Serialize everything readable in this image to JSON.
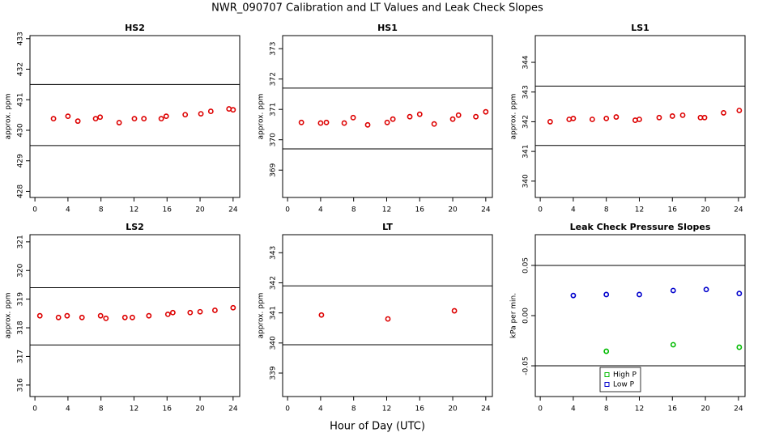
{
  "title": "NWR_090707  Calibration and LT Values and Leak Check Slopes",
  "xlabel": "Hour of Day (UTC)",
  "chart_data": [
    {
      "type": "scatter",
      "title": "HS2",
      "ylabel": "approx. ppm",
      "xlim": [
        -0.6,
        24.8
      ],
      "xticks": [
        0,
        4,
        8,
        12,
        16,
        20,
        24
      ],
      "ylim": [
        427.8,
        433.1
      ],
      "yticks": [
        428,
        429,
        430,
        431,
        432,
        433
      ],
      "hlines": [
        431.5,
        429.5
      ],
      "series": [
        {
          "color": "#dd0000",
          "x": [
            2.25,
            4.0,
            5.2,
            7.35,
            7.9,
            10.2,
            12.05,
            13.2,
            15.3,
            15.9,
            18.2,
            20.1,
            21.3,
            23.5,
            24.0
          ],
          "values": [
            430.38,
            430.46,
            430.3,
            430.38,
            430.43,
            430.25,
            430.38,
            430.38,
            430.38,
            430.46,
            430.51,
            430.54,
            430.62,
            430.7,
            430.67
          ]
        }
      ]
    },
    {
      "type": "scatter",
      "title": "HS1",
      "ylabel": "approx. ppm",
      "xlim": [
        -0.6,
        24.8
      ],
      "xticks": [
        0,
        4,
        8,
        12,
        16,
        20,
        24
      ],
      "ylim": [
        368.1,
        373.43
      ],
      "yticks": [
        369,
        370,
        371,
        372,
        373
      ],
      "hlines": [
        371.7,
        369.7
      ],
      "series": [
        {
          "color": "#dd0000",
          "x": [
            1.67,
            4.0,
            4.7,
            6.86,
            7.94,
            9.7,
            12.06,
            12.75,
            14.8,
            16.0,
            17.75,
            20.0,
            20.7,
            22.8,
            24.0
          ],
          "values": [
            370.57,
            370.55,
            370.57,
            370.55,
            370.73,
            370.49,
            370.57,
            370.68,
            370.76,
            370.84,
            370.52,
            370.68,
            370.81,
            370.76,
            370.92
          ]
        }
      ]
    },
    {
      "type": "scatter",
      "title": "LS1",
      "ylabel": "approx. ppm",
      "xlim": [
        -0.6,
        24.8
      ],
      "xticks": [
        0,
        4,
        8,
        12,
        16,
        20,
        24
      ],
      "ylim": [
        339.45,
        344.9
      ],
      "yticks": [
        340,
        341,
        342,
        343,
        344
      ],
      "hlines": [
        343.2,
        341.2
      ],
      "series": [
        {
          "color": "#dd0000",
          "x": [
            1.2,
            3.5,
            4.0,
            6.3,
            8.0,
            9.2,
            11.5,
            12.0,
            14.4,
            16.0,
            17.25,
            19.4,
            19.9,
            22.2,
            24.1
          ],
          "values": [
            342.0,
            342.08,
            342.11,
            342.08,
            342.11,
            342.16,
            342.05,
            342.08,
            342.14,
            342.19,
            342.22,
            342.14,
            342.14,
            342.3,
            342.38
          ]
        }
      ]
    },
    {
      "type": "scatter",
      "title": "LS2",
      "ylabel": "approx. ppm",
      "xlim": [
        -0.6,
        24.8
      ],
      "xticks": [
        0,
        4,
        8,
        12,
        16,
        20,
        24
      ],
      "ylim": [
        315.6,
        321.25
      ],
      "yticks": [
        316,
        317,
        318,
        319,
        320,
        321
      ],
      "hlines": [
        319.4,
        317.4
      ],
      "series": [
        {
          "color": "#dd0000",
          "x": [
            0.6,
            2.85,
            3.9,
            5.7,
            7.95,
            8.6,
            10.9,
            11.8,
            13.8,
            16.1,
            16.7,
            18.8,
            20.0,
            21.8,
            24.0
          ],
          "values": [
            318.42,
            318.36,
            318.42,
            318.36,
            318.42,
            318.33,
            318.36,
            318.36,
            318.42,
            318.47,
            318.53,
            318.53,
            318.56,
            318.61,
            318.7
          ]
        }
      ]
    },
    {
      "type": "scatter",
      "title": "LT",
      "ylabel": "approx. ppm",
      "xlim": [
        -0.6,
        24.8
      ],
      "xticks": [
        0,
        4,
        8,
        12,
        16,
        20,
        24
      ],
      "ylim": [
        338.22,
        343.6
      ],
      "yticks": [
        339,
        340,
        341,
        342,
        343
      ],
      "hlines": [
        341.9,
        339.94
      ],
      "series": [
        {
          "color": "#dd0000",
          "x": [
            4.1,
            12.15,
            20.2
          ],
          "values": [
            340.93,
            340.8,
            341.07
          ]
        }
      ]
    },
    {
      "type": "scatter",
      "title": "Leak Check Pressure Slopes",
      "ylabel": "kPa per min.",
      "xlim": [
        -0.6,
        24.8
      ],
      "xticks": [
        0,
        4,
        8,
        12,
        16,
        20,
        24
      ],
      "ylim": [
        -0.0806,
        0.0806
      ],
      "yticks": [
        -0.05,
        {
          "value": 0,
          "label": "0.00"
        },
        0.05
      ],
      "hlines": [
        0.05,
        -0.05
      ],
      "legend": "bottom",
      "series": [
        {
          "name": "High P",
          "color": "#00bb00",
          "x": [
            8.0,
            16.1,
            24.1
          ],
          "values": [
            -0.0355,
            -0.029,
            -0.0315
          ]
        },
        {
          "name": "Low P",
          "color": "#0000cc",
          "x": [
            4.0,
            8.0,
            12.0,
            16.1,
            20.1,
            24.1
          ],
          "values": [
            0.02,
            0.021,
            0.021,
            0.025,
            0.026,
            0.022
          ]
        }
      ]
    }
  ]
}
